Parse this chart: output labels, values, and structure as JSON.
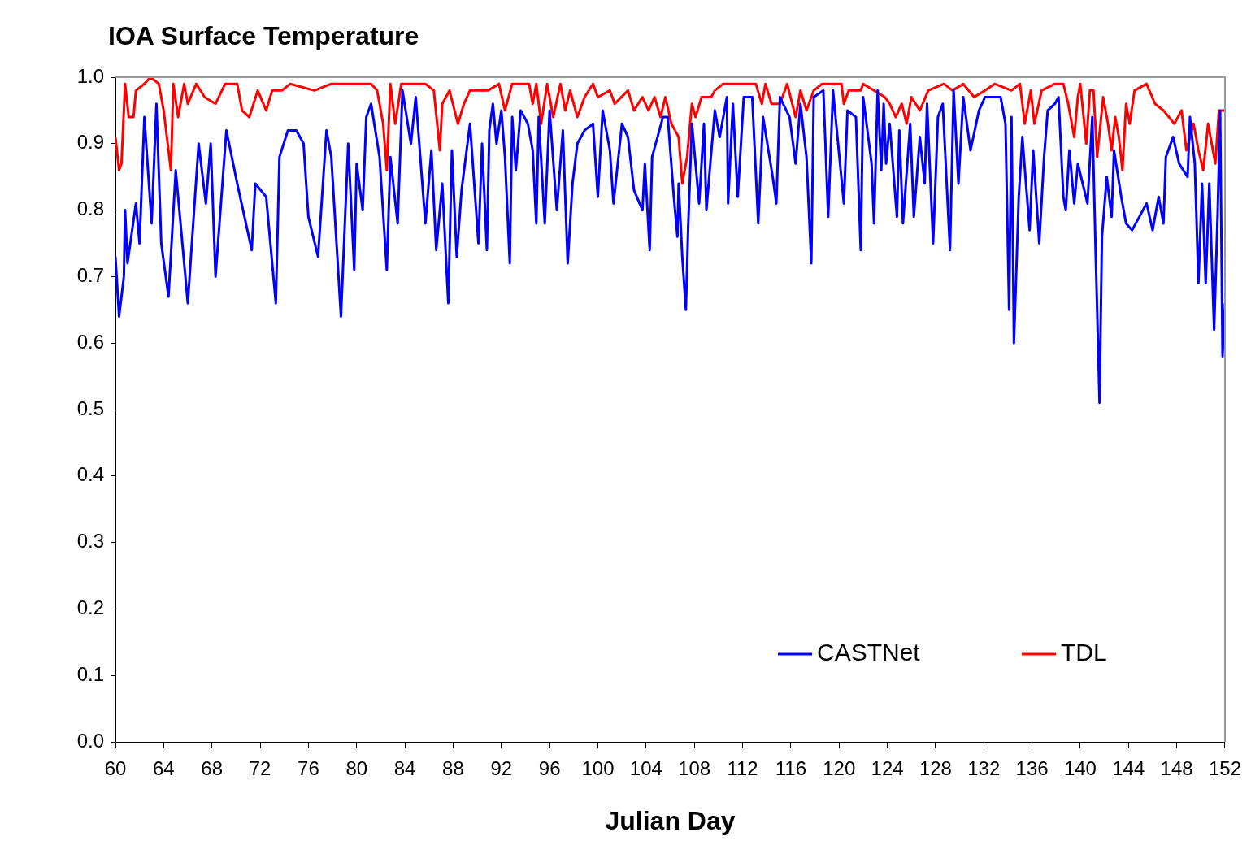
{
  "chart_data": {
    "type": "line",
    "title": "IOA Surface Temperature",
    "xlabel": "Julian Day",
    "xlim": [
      60,
      152
    ],
    "xticks": [
      60,
      64,
      68,
      72,
      76,
      80,
      84,
      88,
      92,
      96,
      100,
      104,
      108,
      112,
      116,
      120,
      124,
      128,
      132,
      136,
      140,
      144,
      148,
      152
    ],
    "ylim": [
      0,
      1
    ],
    "yticks": [
      {
        "value": 0,
        "label": "0.0"
      },
      {
        "value": 0.1,
        "label": "0.1"
      },
      {
        "value": 0.2,
        "label": "0.2"
      },
      {
        "value": 0.3,
        "label": "0.3"
      },
      {
        "value": 0.4,
        "label": "0.4"
      },
      {
        "value": 0.5,
        "label": "0.5"
      },
      {
        "value": 0.6,
        "label": "0.6"
      },
      {
        "value": 0.7,
        "label": "0.7"
      },
      {
        "value": 0.8,
        "label": "0.8"
      },
      {
        "value": 0.9,
        "label": "0.9"
      },
      {
        "value": 1,
        "label": "1.0"
      }
    ],
    "grid": false,
    "legend": "bottom right",
    "marker": "none",
    "line_style": "solid",
    "series": [
      {
        "name": "CASTNet",
        "color": "#0000ff",
        "x": [
          60,
          60.3,
          60.7,
          60.8,
          61,
          61.7,
          62,
          62.4,
          63,
          63.4,
          63.8,
          64.4,
          65,
          66,
          66.9,
          67.5,
          67.9,
          68.3,
          69.2,
          70.1,
          71.3,
          71.6,
          72.5,
          73.3,
          73.6,
          74.3,
          75,
          75.6,
          76,
          76.8,
          77.5,
          77.9,
          78.7,
          79.3,
          79.8,
          80,
          80.5,
          80.8,
          81.2,
          81.9,
          82.5,
          82.8,
          83.4,
          83.8,
          84.5,
          84.9,
          85.7,
          86.2,
          86.6,
          87.1,
          87.6,
          87.9,
          88.3,
          88.7,
          89.4,
          90.1,
          90.4,
          90.8,
          91,
          91.3,
          91.6,
          92,
          92.3,
          92.7,
          92.9,
          93.2,
          93.6,
          94.2,
          94.6,
          94.9,
          95.1,
          95.6,
          96,
          96.6,
          97.1,
          97.5,
          97.9,
          98.3,
          98.9,
          99.6,
          100,
          100.4,
          101,
          101.3,
          102,
          102.5,
          103,
          103.7,
          103.9,
          104.3,
          104.5,
          105.4,
          105.8,
          106.3,
          106.6,
          106.7,
          107,
          107.3,
          107.5,
          107.8,
          108.4,
          108.8,
          109,
          109.7,
          110.1,
          110.7,
          110.8,
          111.2,
          111.6,
          112.1,
          112.8,
          113.3,
          113.7,
          114.5,
          114.8,
          115.1,
          115.9,
          116.4,
          116.8,
          117.3,
          117.7,
          117.9,
          118.7,
          119.1,
          119.5,
          120.4,
          120.7,
          121.4,
          121.8,
          122,
          122.7,
          122.9,
          123.2,
          123.5,
          123.7,
          123.9,
          124.2,
          124.8,
          125,
          125.3,
          125.9,
          126.2,
          126.7,
          127.1,
          127.3,
          127.8,
          128.2,
          128.6,
          129.2,
          129.5,
          129.9,
          130.3,
          130.9,
          131.6,
          132.1,
          133.4,
          133.8,
          134.1,
          134.3,
          134.5,
          134.9,
          135.2,
          135.8,
          136.1,
          136.6,
          137,
          137.3,
          137.9,
          138.2,
          138.6,
          138.8,
          139.1,
          139.5,
          139.8,
          140.6,
          141,
          141.3,
          141.6,
          141.8,
          142.2,
          142.6,
          142.8,
          143.4,
          143.8,
          144.3,
          145.5,
          146,
          146.5,
          146.9,
          147.1,
          147.7,
          148.2,
          148.9,
          149.1,
          149.5,
          149.8,
          150.1,
          150.4,
          150.7,
          151.1,
          151.4,
          151.6,
          151.8,
          152
        ],
        "values": [
          0.73,
          0.64,
          0.7,
          0.8,
          0.72,
          0.81,
          0.75,
          0.94,
          0.78,
          0.96,
          0.75,
          0.67,
          0.86,
          0.66,
          0.9,
          0.81,
          0.9,
          0.7,
          0.92,
          0.84,
          0.74,
          0.84,
          0.82,
          0.66,
          0.88,
          0.92,
          0.92,
          0.9,
          0.79,
          0.73,
          0.92,
          0.88,
          0.64,
          0.9,
          0.71,
          0.87,
          0.8,
          0.94,
          0.96,
          0.88,
          0.71,
          0.88,
          0.78,
          0.98,
          0.9,
          0.97,
          0.78,
          0.89,
          0.74,
          0.84,
          0.66,
          0.89,
          0.73,
          0.83,
          0.93,
          0.75,
          0.9,
          0.74,
          0.92,
          0.96,
          0.9,
          0.95,
          0.88,
          0.72,
          0.94,
          0.86,
          0.95,
          0.93,
          0.89,
          0.78,
          0.94,
          0.78,
          0.95,
          0.8,
          0.92,
          0.72,
          0.84,
          0.9,
          0.92,
          0.93,
          0.82,
          0.95,
          0.89,
          0.81,
          0.93,
          0.91,
          0.83,
          0.8,
          0.87,
          0.74,
          0.88,
          0.94,
          0.94,
          0.82,
          0.76,
          0.84,
          0.73,
          0.65,
          0.78,
          0.93,
          0.81,
          0.93,
          0.8,
          0.95,
          0.91,
          0.97,
          0.81,
          0.96,
          0.82,
          0.97,
          0.97,
          0.78,
          0.94,
          0.85,
          0.81,
          0.97,
          0.94,
          0.87,
          0.96,
          0.88,
          0.72,
          0.97,
          0.98,
          0.79,
          0.98,
          0.81,
          0.95,
          0.94,
          0.74,
          0.97,
          0.87,
          0.78,
          0.98,
          0.86,
          0.96,
          0.87,
          0.93,
          0.79,
          0.92,
          0.78,
          0.93,
          0.79,
          0.91,
          0.84,
          0.96,
          0.75,
          0.94,
          0.96,
          0.74,
          0.98,
          0.84,
          0.97,
          0.89,
          0.95,
          0.97,
          0.97,
          0.93,
          0.65,
          0.94,
          0.6,
          0.82,
          0.91,
          0.77,
          0.89,
          0.75,
          0.88,
          0.95,
          0.96,
          0.97,
          0.82,
          0.8,
          0.89,
          0.81,
          0.87,
          0.81,
          0.94,
          0.72,
          0.51,
          0.76,
          0.85,
          0.79,
          0.89,
          0.82,
          0.78,
          0.77,
          0.81,
          0.77,
          0.82,
          0.78,
          0.88,
          0.91,
          0.87,
          0.85,
          0.94,
          0.87,
          0.69,
          0.84,
          0.69,
          0.84,
          0.62,
          0.8,
          0.95,
          0.58,
          0.66
        ]
      },
      {
        "name": "TDL",
        "color": "#ff0000",
        "x": [
          60,
          60.3,
          60.5,
          60.8,
          61.1,
          61.5,
          61.7,
          62.4,
          62.9,
          63.6,
          64,
          64.6,
          64.8,
          65.2,
          65.7,
          66,
          66.7,
          67.4,
          68.3,
          69.1,
          70.1,
          70.5,
          71.1,
          71.8,
          72.5,
          73,
          73.8,
          74.5,
          76.5,
          77.9,
          81.2,
          81.7,
          82.2,
          82.5,
          82.8,
          83.2,
          83.7,
          85.7,
          86.4,
          86.9,
          87.1,
          87.7,
          88.4,
          88.9,
          89.4,
          90.9,
          91.8,
          92.3,
          92.9,
          94.3,
          94.6,
          94.9,
          95.3,
          95.8,
          96.3,
          96.9,
          97.3,
          97.7,
          98.3,
          98.9,
          99.6,
          100,
          101,
          101.4,
          102.5,
          103,
          103.7,
          104.2,
          104.7,
          105.2,
          105.6,
          106.1,
          106.7,
          107,
          107.4,
          107.8,
          108.1,
          108.6,
          109.4,
          109.7,
          110.4,
          113.1,
          113.6,
          113.9,
          114.4,
          115.1,
          115.7,
          116.4,
          116.8,
          117.3,
          117.9,
          118.6,
          120.2,
          120.4,
          120.8,
          121.8,
          122,
          123.8,
          124.2,
          124.7,
          125.2,
          125.6,
          126,
          126.7,
          127.4,
          128.7,
          129.4,
          130.3,
          131.2,
          132.1,
          132.9,
          134.3,
          135,
          135.4,
          135.9,
          136.2,
          136.8,
          137.9,
          138.6,
          139,
          139.5,
          139.8,
          140,
          140.5,
          140.8,
          141.1,
          141.4,
          141.9,
          142.3,
          142.6,
          142.9,
          143.2,
          143.5,
          143.8,
          144.1,
          144.5,
          145.5,
          146.2,
          146.9,
          147.8,
          148.4,
          148.8,
          149.4,
          149.8,
          150.2,
          150.6,
          151.2,
          151.5,
          152
        ],
        "values": [
          0.91,
          0.86,
          0.87,
          0.99,
          0.94,
          0.94,
          0.98,
          0.99,
          1,
          0.99,
          0.95,
          0.86,
          0.99,
          0.94,
          0.99,
          0.96,
          0.99,
          0.97,
          0.96,
          0.99,
          0.99,
          0.95,
          0.94,
          0.98,
          0.95,
          0.98,
          0.98,
          0.99,
          0.98,
          0.99,
          0.99,
          0.98,
          0.93,
          0.86,
          0.99,
          0.93,
          0.99,
          0.99,
          0.98,
          0.89,
          0.96,
          0.98,
          0.93,
          0.96,
          0.98,
          0.98,
          0.99,
          0.95,
          0.99,
          0.99,
          0.96,
          0.99,
          0.93,
          0.99,
          0.94,
          0.99,
          0.95,
          0.98,
          0.94,
          0.97,
          0.99,
          0.97,
          0.98,
          0.96,
          0.98,
          0.95,
          0.97,
          0.95,
          0.97,
          0.94,
          0.97,
          0.93,
          0.91,
          0.84,
          0.88,
          0.96,
          0.94,
          0.97,
          0.97,
          0.98,
          0.99,
          0.99,
          0.96,
          0.99,
          0.96,
          0.96,
          0.99,
          0.94,
          0.98,
          0.95,
          0.98,
          0.99,
          0.99,
          0.96,
          0.98,
          0.98,
          0.99,
          0.97,
          0.96,
          0.94,
          0.96,
          0.93,
          0.97,
          0.95,
          0.98,
          0.99,
          0.98,
          0.99,
          0.97,
          0.98,
          0.99,
          0.98,
          0.99,
          0.93,
          0.98,
          0.93,
          0.98,
          0.99,
          0.99,
          0.96,
          0.91,
          0.97,
          0.99,
          0.9,
          0.98,
          0.98,
          0.88,
          0.97,
          0.93,
          0.89,
          0.94,
          0.91,
          0.86,
          0.96,
          0.93,
          0.98,
          0.99,
          0.96,
          0.95,
          0.93,
          0.95,
          0.89,
          0.93,
          0.89,
          0.86,
          0.93,
          0.87,
          0.95,
          0.95
        ]
      }
    ]
  }
}
